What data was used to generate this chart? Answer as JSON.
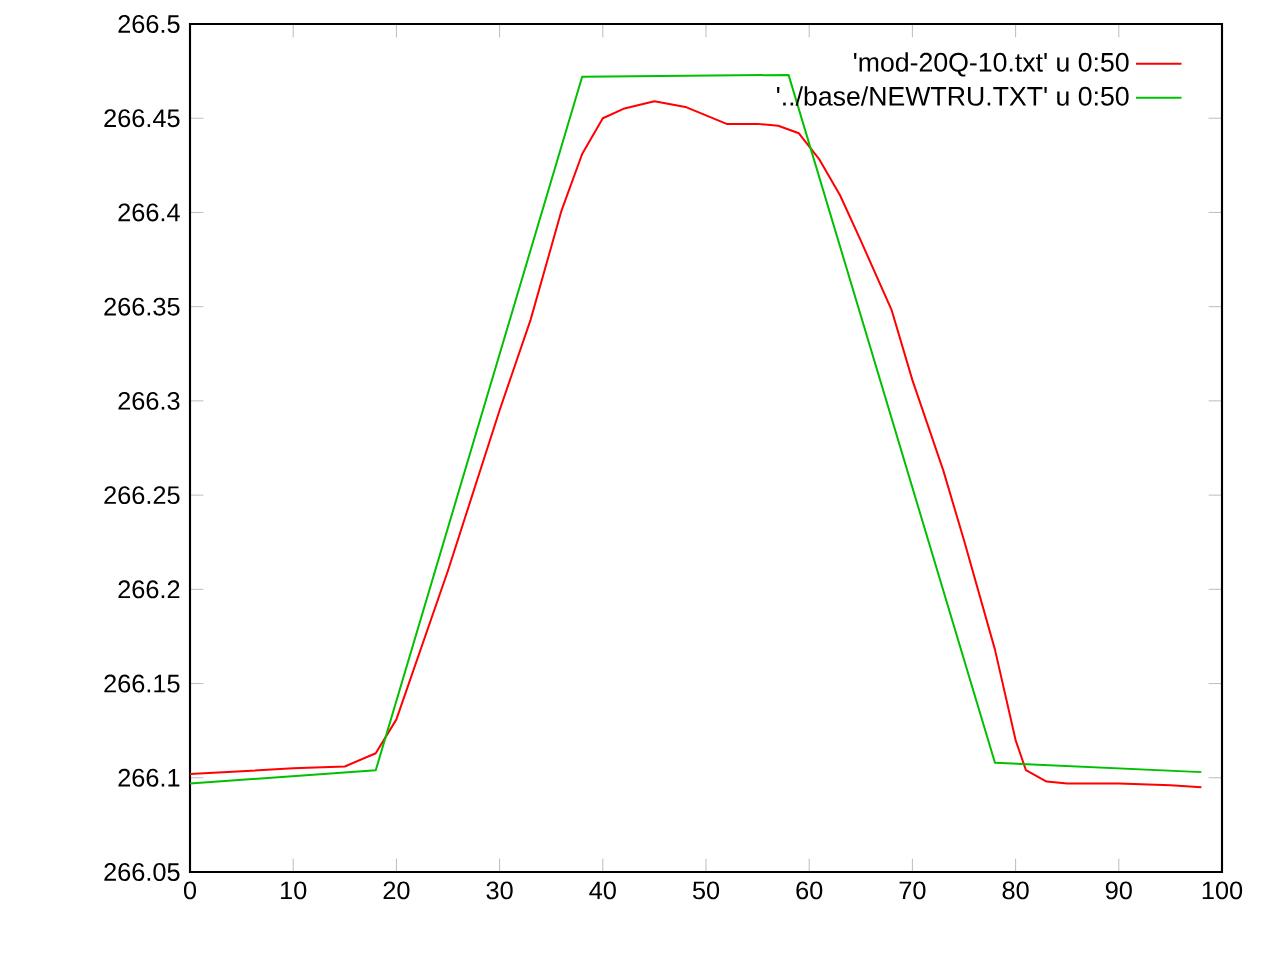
{
  "chart_data": {
    "type": "line",
    "xlim": [
      0,
      100
    ],
    "ylim": [
      266.05,
      266.5
    ],
    "xticks": [
      0,
      10,
      20,
      30,
      40,
      50,
      60,
      70,
      80,
      90,
      100
    ],
    "yticks": [
      266.05,
      266.1,
      266.15,
      266.2,
      266.25,
      266.3,
      266.35,
      266.4,
      266.45,
      266.5
    ],
    "legend": "top right",
    "grid": false,
    "series": [
      {
        "name": "'mod-20Q-10.txt' u 0:50",
        "color": "#ff0000",
        "x": [
          0,
          10,
          15,
          18,
          20,
          25,
          30,
          33,
          36,
          38,
          40,
          42,
          45,
          48,
          52,
          55,
          57,
          59,
          61,
          63,
          65,
          68,
          70,
          73,
          75,
          78,
          80,
          81,
          83,
          85,
          90,
          95,
          98
        ],
        "values": [
          266.102,
          266.105,
          266.106,
          266.113,
          266.131,
          266.21,
          266.295,
          266.343,
          266.401,
          266.431,
          266.45,
          266.455,
          266.459,
          266.456,
          266.447,
          266.447,
          266.446,
          266.442,
          266.428,
          266.409,
          266.385,
          266.348,
          266.311,
          266.263,
          266.226,
          266.168,
          266.12,
          266.104,
          266.098,
          266.097,
          266.097,
          266.096,
          266.095
        ]
      },
      {
        "name": "'../base/NEWTRU.TXT' u 0:50",
        "color": "#00c000",
        "x": [
          0,
          18,
          38,
          58,
          78,
          98
        ],
        "values": [
          266.097,
          266.104,
          266.472,
          266.473,
          266.108,
          266.103
        ]
      }
    ]
  }
}
